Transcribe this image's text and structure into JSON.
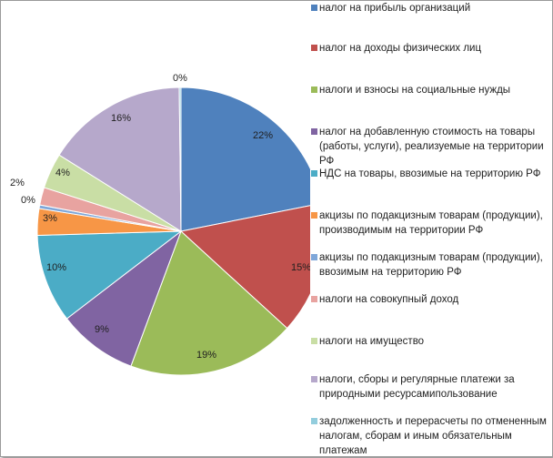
{
  "chart_data": {
    "type": "pie",
    "title": "",
    "legend_position": "right",
    "slices": [
      {
        "label": "налог на прибыль организаций",
        "value": 22,
        "value_label": "22%",
        "color": "#4F81BD"
      },
      {
        "label": "налог на доходы физических лиц",
        "value": 15,
        "value_label": "15%",
        "color": "#C0504D"
      },
      {
        "label": "налоги и взносы на социальные нужды",
        "value": 19,
        "value_label": "19%",
        "color": "#9BBB59"
      },
      {
        "label": "налог на добавленную стоимость на товары (работы, услуги), реализуемые на территории РФ",
        "value": 9,
        "value_label": "9%",
        "color": "#8064A2"
      },
      {
        "label": "НДС на товары, ввозимые на территорию РФ",
        "value": 10,
        "value_label": "10%",
        "color": "#4BACC6"
      },
      {
        "label": "акцизы по подакцизным товарам (продукции), производимым на территории РФ",
        "value": 3,
        "value_label": "3%",
        "color": "#F79646"
      },
      {
        "label": "акцизы по подакцизным товарам (продукции), ввозимым на территорию РФ",
        "value": 0.4,
        "value_label": "0%",
        "color": "#7FA7D9"
      },
      {
        "label": "налоги на совокупный доход",
        "value": 2,
        "value_label": "2%",
        "color": "#E8A3A0"
      },
      {
        "label": "налоги на имущество",
        "value": 4,
        "value_label": "4%",
        "color": "#C9DEA5"
      },
      {
        "label": "налоги, сборы и регулярные платежи за природными ресурсамипользование",
        "value": 16,
        "value_label": "16%",
        "color": "#B6A8CB"
      },
      {
        "label": "задолженность и перерасчеты по отмененным налогам, сборам и иным обязательным платежам",
        "value": 0.2,
        "value_label": "0%",
        "color": "#93CDDD"
      }
    ]
  }
}
